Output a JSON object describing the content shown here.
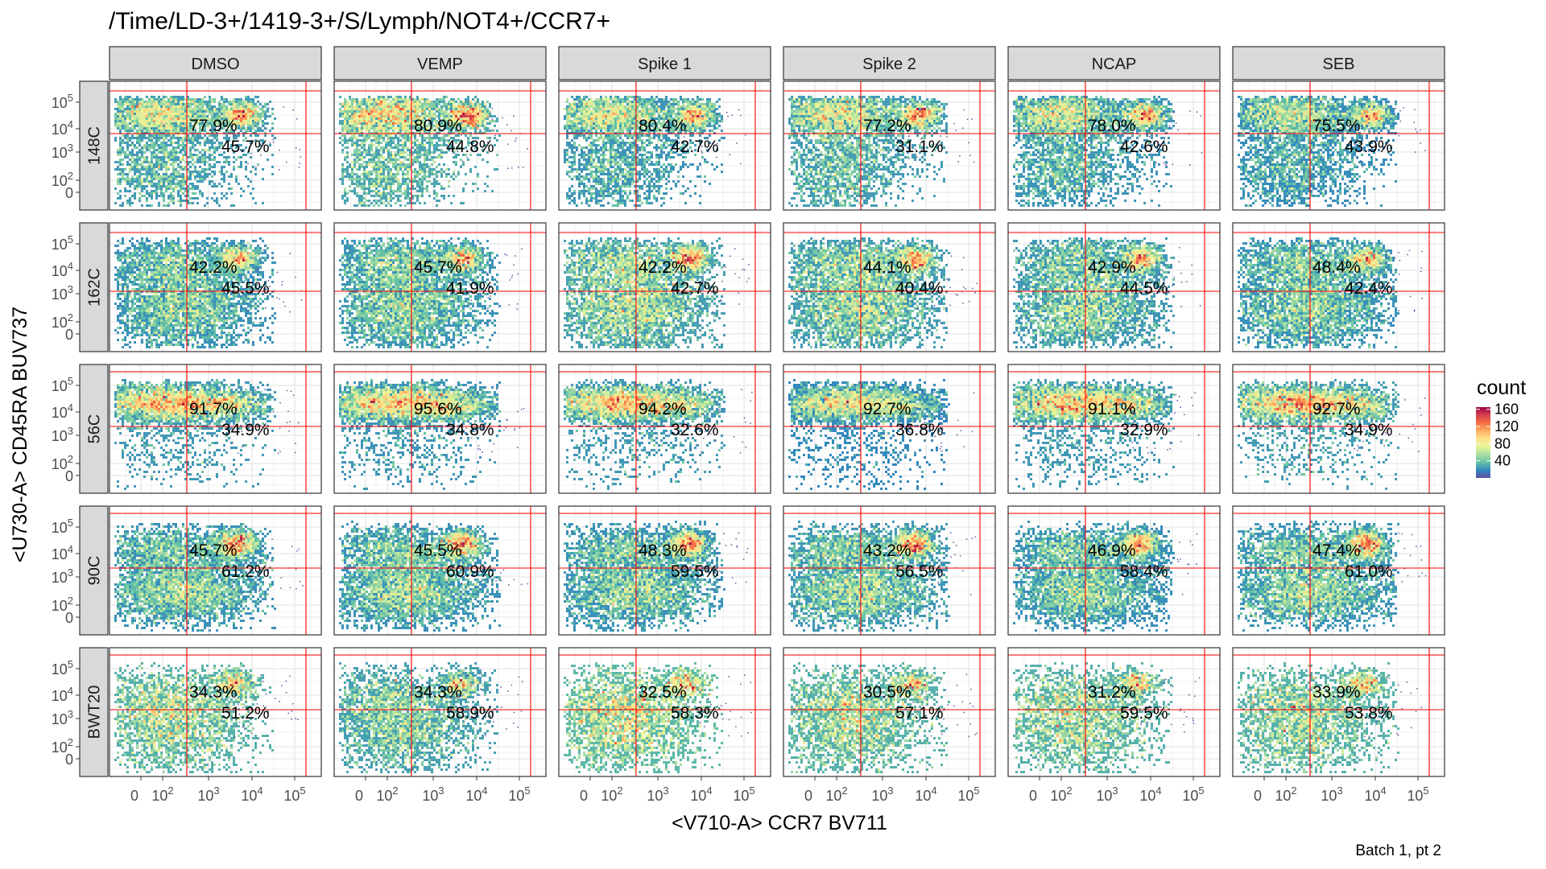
{
  "chart_data": {
    "type": "heatmap",
    "title": "/Time/LD-3+/1419-3+/S/Lymph/NOT4+/CCR7+",
    "xlabel": "<V710-A> CCR7 BV711",
    "ylabel": "<U730-A> CD45RA BUV737",
    "caption": "Batch 1, pt 2",
    "columns": [
      "DMSO",
      "VEMP",
      "Spike 1",
      "Spike 2",
      "NCAP",
      "SEB"
    ],
    "rows": [
      "148C",
      "162C",
      "56C",
      "90C",
      "BWT20"
    ],
    "x_ticks": [
      "0",
      "10^2",
      "10^3",
      "10^4",
      "10^5"
    ],
    "y_ticks": [
      "10^5",
      "10^4",
      "10^3",
      "10^2",
      "0"
    ],
    "legend": {
      "title": "count",
      "ticks": [
        "160",
        "120",
        "80",
        "40"
      ],
      "range": [
        0,
        165
      ],
      "colors": [
        "#5e4fa2",
        "#3288bd",
        "#66c2a5",
        "#abdda4",
        "#e6f598",
        "#fee08b",
        "#fdae61",
        "#f46d43",
        "#d53e4f",
        "#9e0142"
      ]
    },
    "gate_line_color": "#ff0000",
    "upper_percent": [
      [
        "77.9%",
        "80.9%",
        "80.4%",
        "77.2%",
        "78.0%",
        "75.5%"
      ],
      [
        "42.2%",
        "45.7%",
        "42.2%",
        "44.1%",
        "42.9%",
        "48.4%"
      ],
      [
        "91.7%",
        "95.6%",
        "94.2%",
        "92.7%",
        "91.1%",
        "92.7%"
      ],
      [
        "45.7%",
        "45.5%",
        "48.3%",
        "43.2%",
        "46.9%",
        "47.4%"
      ],
      [
        "34.3%",
        "34.3%",
        "32.5%",
        "30.5%",
        "31.2%",
        "33.9%"
      ]
    ],
    "lower_percent": [
      [
        "45.7%",
        "44.8%",
        "42.7%",
        "31.1%",
        "42.6%",
        "43.9%"
      ],
      [
        "45.5%",
        "41.9%",
        "42.7%",
        "40.4%",
        "44.5%",
        "42.4%"
      ],
      [
        "34.9%",
        "34.8%",
        "32.6%",
        "36.8%",
        "32.9%",
        "34.9%"
      ],
      [
        "61.2%",
        "60.9%",
        "59.5%",
        "56.5%",
        "58.4%",
        "61.0%"
      ],
      [
        "51.2%",
        "58.9%",
        "58.3%",
        "57.1%",
        "59.5%",
        "53.8%"
      ]
    ]
  }
}
